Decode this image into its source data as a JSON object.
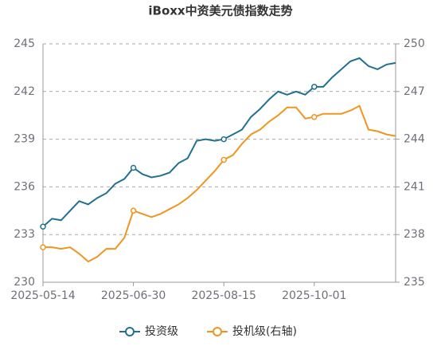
{
  "chart_data": {
    "type": "line",
    "title": "iBoxx中资美元债指数走势",
    "categories": [
      "2025-05-14",
      null,
      null,
      null,
      null,
      null,
      null,
      null,
      null,
      null,
      "2025-06-30",
      null,
      null,
      null,
      null,
      null,
      null,
      null,
      null,
      null,
      "2025-08-15",
      null,
      null,
      null,
      null,
      null,
      null,
      null,
      null,
      null,
      "2025-10-01",
      null,
      null,
      null,
      null,
      null,
      null,
      null,
      null,
      null
    ],
    "series": [
      {
        "name": "投资级",
        "color": "#22708f",
        "axis": "y",
        "values": [
          233.5,
          234,
          233.9,
          234.5,
          235.1,
          234.9,
          235.3,
          235.6,
          236.2,
          236.5,
          237.2,
          236.8,
          236.6,
          236.7,
          236.9,
          237.5,
          237.8,
          238.9,
          239.0,
          238.9,
          239.0,
          239.3,
          239.6,
          240.4,
          240.9,
          241.5,
          242.0,
          241.8,
          242.0,
          241.8,
          242.3,
          242.3,
          242.9,
          243.4,
          243.9,
          244.1,
          243.6,
          243.4,
          243.7,
          243.8
        ]
      },
      {
        "name": "投机级(右轴)",
        "color": "#f0951f",
        "axis": "y2",
        "values": [
          237.2,
          237.2,
          237.1,
          237.2,
          236.8,
          236.3,
          236.6,
          237.1,
          237.1,
          237.8,
          239.5,
          239.3,
          239.1,
          239.3,
          239.6,
          239.9,
          240.3,
          240.8,
          241.4,
          242.0,
          242.7,
          243.0,
          243.7,
          244.3,
          244.6,
          245.1,
          245.5,
          246.0,
          246.0,
          245.3,
          245.4,
          245.6,
          245.6,
          245.6,
          245.8,
          246.1,
          244.6,
          244.5,
          244.3,
          244.2
        ]
      }
    ],
    "ylim": [
      230,
      245
    ],
    "yticks": [
      230,
      233,
      236,
      239,
      242,
      245
    ],
    "y2lim": [
      235,
      250
    ],
    "y2ticks": [
      235,
      238,
      241,
      244,
      247,
      250
    ],
    "grid": true
  }
}
